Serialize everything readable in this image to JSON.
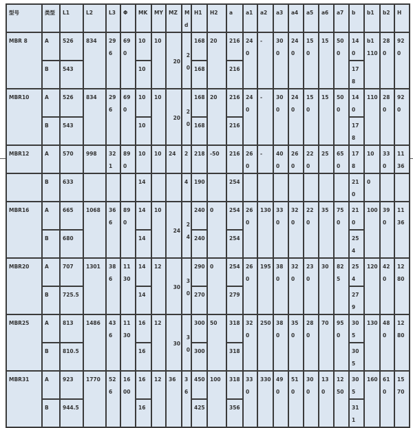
{
  "columns": [
    {
      "key": "model",
      "label": "型号"
    },
    {
      "key": "type",
      "label": "类型"
    },
    {
      "key": "L1",
      "label": "L1"
    },
    {
      "key": "L2",
      "label": "L2"
    },
    {
      "key": "L3",
      "label": "L3"
    },
    {
      "key": "phi",
      "label": "Φ"
    },
    {
      "key": "MK",
      "label": "MK"
    },
    {
      "key": "MY",
      "label": "MY"
    },
    {
      "key": "MZ",
      "label": "MZ"
    },
    {
      "key": "Md",
      "label": "Md"
    },
    {
      "key": "H1",
      "label": "H1"
    },
    {
      "key": "H2",
      "label": "H2"
    },
    {
      "key": "a",
      "label": "a"
    },
    {
      "key": "a1",
      "label": "a1"
    },
    {
      "key": "a2",
      "label": "a2"
    },
    {
      "key": "a3",
      "label": "a3"
    },
    {
      "key": "a4",
      "label": "a4"
    },
    {
      "key": "a5",
      "label": "a5"
    },
    {
      "key": "a6",
      "label": "a6"
    },
    {
      "key": "a7",
      "label": "a7"
    },
    {
      "key": "b",
      "label": "b"
    },
    {
      "key": "b1",
      "label": "b1"
    },
    {
      "key": "b2",
      "label": "b2"
    },
    {
      "key": "H",
      "label": "H"
    }
  ],
  "groups": [
    {
      "spans": [
        "model",
        "L2",
        "L3",
        "phi",
        "MY",
        "MZ",
        "Md",
        "H2",
        "a1",
        "a2",
        "a3",
        "a4",
        "a5",
        "a6",
        "a7",
        "b1",
        "b2",
        "H"
      ],
      "rows": [
        {
          "model": "MBR 8",
          "type": "A",
          "L1": "526",
          "L2": "834",
          "L3": "296",
          "phi": "690",
          "MK": "10",
          "MY": "10",
          "MZ": "20",
          "Md": "20",
          "H1": "168",
          "H2": "20",
          "a": "216",
          "a1": "240",
          "a2": "-",
          "a3": "300",
          "a4": "240",
          "a5": "150",
          "a6": "15",
          "a7": "500",
          "b": "140",
          "b1": "b1 110",
          "b2": "280",
          "H": "920"
        },
        {
          "type": "B",
          "L1": "543",
          "MK": "10",
          "H1": "168",
          "a": "216",
          "b": "178"
        }
      ]
    },
    {
      "spans": [
        "model",
        "L2",
        "L3",
        "phi",
        "MY",
        "MZ",
        "Md",
        "H2",
        "a1",
        "a2",
        "a3",
        "a4",
        "a5",
        "a6",
        "a7",
        "b1",
        "b2",
        "H"
      ],
      "rows": [
        {
          "model": "MBR10",
          "type": "A",
          "L1": "526",
          "L2": "834",
          "L3": "296",
          "phi": "690",
          "MK": "10",
          "MY": "10",
          "MZ": "20",
          "Md": "20",
          "H1": "168",
          "H2": "20",
          "a": "216",
          "a1": "240",
          "a2": "-",
          "a3": "300",
          "a4": "240",
          "a5": "150",
          "a6": "15",
          "a7": "500",
          "b": "140",
          "b1": "110",
          "b2": "280",
          "H": "920"
        },
        {
          "type": "B",
          "L1": "543",
          "MK": "10",
          "H1": "168",
          "a": "216",
          "b": "178"
        }
      ]
    },
    {
      "spans": [],
      "rows": [
        {
          "model": "MBR12",
          "type": "A",
          "L1": "570",
          "L2": "998",
          "L3": "321",
          "phi": "890",
          "MK": "10",
          "MY": "10",
          "MZ": "24",
          "Md": "2",
          "H1": "218",
          "H2": "-50",
          "a": "216",
          "a1": "260",
          "a2": "-",
          "a3": "400",
          "a4": "260",
          "a5": "220",
          "a6": "25",
          "a7": "650",
          "b": "178",
          "b1": "10",
          "b2": "330",
          "H": "1136"
        },
        {
          "model": "",
          "type": "B",
          "L1": "633",
          "L2": "",
          "L3": "",
          "phi": "",
          "MK": "14",
          "MY": "",
          "MZ": "",
          "Md": "4",
          "H1": "190",
          "H2": "",
          "a": "254",
          "a1": "",
          "a2": "",
          "a3": "",
          "a4": "",
          "a5": "",
          "a6": "",
          "a7": "",
          "b": "210",
          "b1": "0",
          "b2": "",
          "H": ""
        }
      ]
    },
    {
      "spans": [
        "model",
        "L2",
        "L3",
        "phi",
        "MY",
        "MZ",
        "Md",
        "H2",
        "a1",
        "a2",
        "a3",
        "a4",
        "a5",
        "a6",
        "a7",
        "b1",
        "b2",
        "H"
      ],
      "rows": [
        {
          "model": "MBR16",
          "type": "A",
          "L1": "665",
          "L2": "1068",
          "L3": "366",
          "phi": "890",
          "MK": "14",
          "MY": "10",
          "MZ": "24",
          "Md": "24",
          "H1": "240",
          "H2": "0",
          "a": "254",
          "a1": "260",
          "a2": "130",
          "a3": "330",
          "a4": "320",
          "a5": "220",
          "a6": "35",
          "a7": "750",
          "b": "210",
          "b1": "100",
          "b2": "390",
          "H": "1136"
        },
        {
          "type": "B",
          "L1": "680",
          "MK": "14",
          "H1": "240",
          "a": "254",
          "b": "254"
        }
      ]
    },
    {
      "spans": [
        "model",
        "L2",
        "L3",
        "phi",
        "MY",
        "MZ",
        "Md",
        "H2",
        "a1",
        "a2",
        "a3",
        "a4",
        "a5",
        "a6",
        "a7",
        "b1",
        "b2",
        "H"
      ],
      "rows": [
        {
          "model": "MBR20",
          "type": "A",
          "L1": "707",
          "L2": "1301",
          "L3": "386",
          "phi": "1130",
          "MK": "14",
          "MY": "12",
          "MZ": "30",
          "Md": "30",
          "H1": "290",
          "H2": "0",
          "a": "254",
          "a1": "260",
          "a2": "195",
          "a3": "380",
          "a4": "320",
          "a5": "230",
          "a6": "30",
          "a7": "825",
          "b": "254",
          "b1": "120",
          "b2": "420",
          "H": "1280"
        },
        {
          "type": "B",
          "L1": "725.5",
          "MK": "14",
          "H1": "270",
          "a": "279",
          "b": "279"
        }
      ]
    },
    {
      "spans": [
        "model",
        "L2",
        "L3",
        "phi",
        "MY",
        "MZ",
        "Md",
        "H2",
        "a1",
        "a2",
        "a3",
        "a4",
        "a5",
        "a6",
        "a7",
        "b1",
        "b2",
        "H"
      ],
      "rows": [
        {
          "model": "MBR25",
          "type": "A",
          "L1": "813",
          "L2": "1486",
          "L3": "436",
          "phi": "1130",
          "MK": "16",
          "MY": "12",
          "MZ": "30",
          "Md": "30",
          "H1": "300",
          "H2": "50",
          "a": "318",
          "a1": "320",
          "a2": "250",
          "a3": "380",
          "a4": "350",
          "a5": "280",
          "a6": "70",
          "a7": "950",
          "b": "305",
          "b1": "130",
          "b2": "480",
          "H": "1280"
        },
        {
          "type": "B",
          "L1": "810.5",
          "MK": "16",
          "H1": "300",
          "a": "318",
          "b": "305"
        }
      ]
    },
    {
      "spans": [
        "model",
        "L2",
        "L3",
        "phi",
        "MY",
        "MZ",
        "Md",
        "H2",
        "a1",
        "a2",
        "a3",
        "a4",
        "a5",
        "a6",
        "a7",
        "b1",
        "b2",
        "H"
      ],
      "rows": [
        {
          "model": "MBR31",
          "type": "A",
          "L1": "923",
          "L2": "1770",
          "L3": "526",
          "phi": "1600",
          "MK": "16",
          "MY": "12",
          "MZ": "36",
          "Md": "36",
          "H1": "450",
          "H2": "100",
          "a": "318",
          "a1": "330",
          "a2": "330",
          "a3": "490",
          "a4": "510",
          "a5": "300",
          "a6": "130",
          "a7": "1250",
          "b": "305",
          "b1": "160",
          "b2": "610",
          "H": "1570"
        },
        {
          "type": "B",
          "L1": "944.5",
          "MK": "16",
          "H1": "425",
          "a": "356",
          "b": "311"
        }
      ]
    }
  ]
}
